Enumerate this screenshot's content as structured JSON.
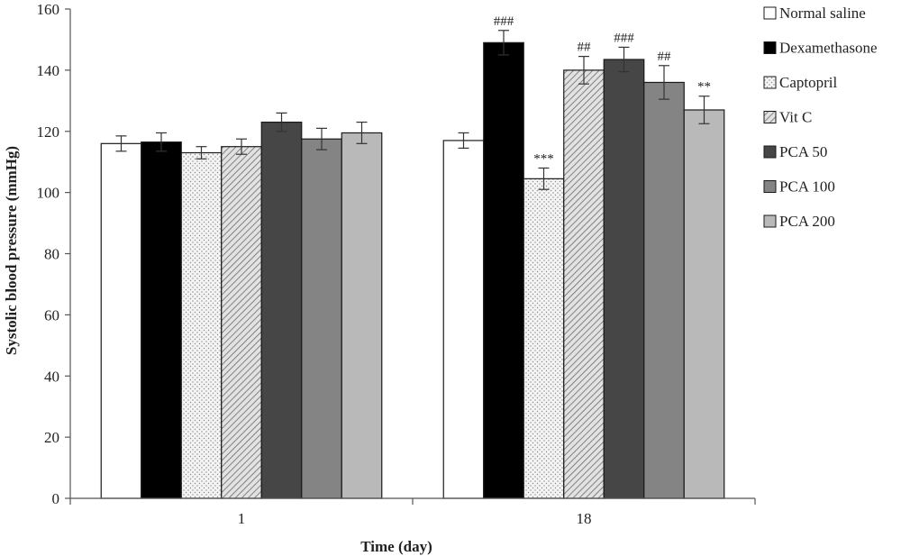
{
  "chart_data": {
    "type": "bar",
    "title": "",
    "xlabel": "Time (day)",
    "ylabel": "Systolic blood pressure (mmHg)",
    "ylim": [
      0,
      160
    ],
    "yticks": [
      0,
      20,
      40,
      60,
      80,
      100,
      120,
      140,
      160
    ],
    "categories": [
      "1",
      "18"
    ],
    "legend_position": "right",
    "grid": false,
    "series": [
      {
        "name": "Normal saline",
        "values": [
          116,
          117
        ],
        "errors": [
          2.5,
          2.5
        ],
        "annotations": [
          "",
          ""
        ],
        "fill": "#ffffff",
        "pattern": "none"
      },
      {
        "name": "Dexamethasone",
        "values": [
          116.5,
          149
        ],
        "errors": [
          3,
          4
        ],
        "annotations": [
          "",
          "###"
        ],
        "fill": "#000000",
        "pattern": "none"
      },
      {
        "name": "Captopril",
        "values": [
          113,
          104.5
        ],
        "errors": [
          2,
          3.5
        ],
        "annotations": [
          "",
          "***"
        ],
        "fill": "#f2f2f2",
        "pattern": "dots"
      },
      {
        "name": "Vit C",
        "values": [
          115,
          140
        ],
        "errors": [
          2.5,
          4.5
        ],
        "annotations": [
          "",
          "##"
        ],
        "fill": "#d6d6d6",
        "pattern": "hatch"
      },
      {
        "name": "PCA 50",
        "values": [
          123,
          143.5
        ],
        "errors": [
          3,
          4
        ],
        "annotations": [
          "",
          "###"
        ],
        "fill": "#464646",
        "pattern": "none"
      },
      {
        "name": "PCA 100",
        "values": [
          117.5,
          136
        ],
        "errors": [
          3.5,
          5.5
        ],
        "annotations": [
          "",
          "##"
        ],
        "fill": "#848484",
        "pattern": "none"
      },
      {
        "name": "PCA 200",
        "values": [
          119.5,
          127
        ],
        "errors": [
          3.5,
          4.5
        ],
        "annotations": [
          "",
          "**"
        ],
        "fill": "#b9b9b9",
        "pattern": "none"
      }
    ]
  }
}
